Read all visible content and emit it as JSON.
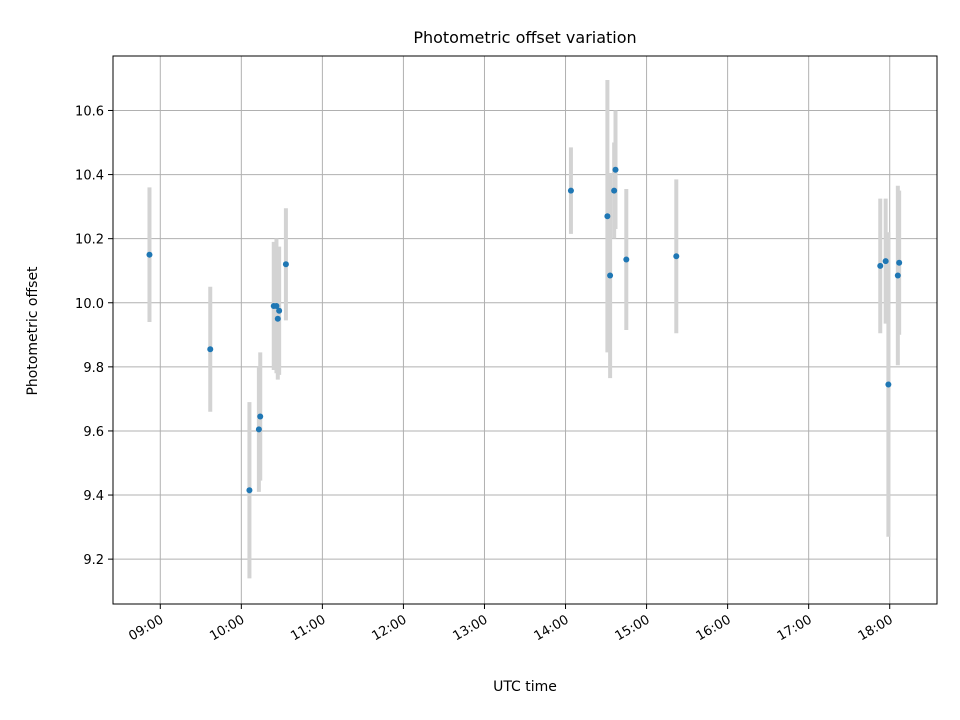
{
  "chart_data": {
    "type": "scatter",
    "title": "Photometric offset variation",
    "xlabel": "UTC time",
    "ylabel": "Photometric offset",
    "xlim": [
      "08:25",
      "18:35"
    ],
    "ylim": [
      9.06,
      10.77
    ],
    "grid": true,
    "x_tick_labels": [
      "09:00",
      "10:00",
      "11:00",
      "12:00",
      "13:00",
      "14:00",
      "15:00",
      "16:00",
      "17:00",
      "18:00"
    ],
    "y_tick_labels": [
      "9.2",
      "9.4",
      "9.6",
      "9.8",
      "10.0",
      "10.2",
      "10.4",
      "10.6"
    ],
    "y_ticks": [
      9.2,
      9.4,
      9.6,
      9.8,
      10.0,
      10.2,
      10.4,
      10.6
    ],
    "point_color": "#1f77b4",
    "errorbar_color": "#d3d3d3",
    "points": [
      {
        "x": "08:52",
        "y": 10.15,
        "yerr": 0.21
      },
      {
        "x": "09:37",
        "y": 9.855,
        "yerr": 0.195
      },
      {
        "x": "10:06",
        "y": 9.415,
        "yerr": 0.275
      },
      {
        "x": "10:13",
        "y": 9.605,
        "yerr": 0.195
      },
      {
        "x": "10:14",
        "y": 9.645,
        "yerr": 0.2
      },
      {
        "x": "10:24",
        "y": 9.99,
        "yerr": 0.2
      },
      {
        "x": "10:26",
        "y": 9.99,
        "yerr": 0.21
      },
      {
        "x": "10:27",
        "y": 9.95,
        "yerr": 0.19
      },
      {
        "x": "10:28",
        "y": 9.975,
        "yerr": 0.2
      },
      {
        "x": "10:33",
        "y": 10.12,
        "yerr": 0.175
      },
      {
        "x": "14:04",
        "y": 10.35,
        "yerr": 0.135
      },
      {
        "x": "14:31",
        "y": 10.27,
        "yerr": 0.425
      },
      {
        "x": "14:33",
        "y": 10.085,
        "yerr": 0.32
      },
      {
        "x": "14:36",
        "y": 10.35,
        "yerr": 0.15
      },
      {
        "x": "14:37",
        "y": 10.415,
        "yerr": 0.185
      },
      {
        "x": "14:45",
        "y": 10.135,
        "yerr": 0.22
      },
      {
        "x": "15:22",
        "y": 10.145,
        "yerr": 0.24
      },
      {
        "x": "17:53",
        "y": 10.115,
        "yerr": 0.21
      },
      {
        "x": "17:57",
        "y": 10.13,
        "yerr": 0.195
      },
      {
        "x": "17:59",
        "y": 9.745,
        "yerr": 0.475
      },
      {
        "x": "18:06",
        "y": 10.085,
        "yerr": 0.28
      },
      {
        "x": "18:07",
        "y": 10.125,
        "yerr": 0.225
      }
    ]
  }
}
